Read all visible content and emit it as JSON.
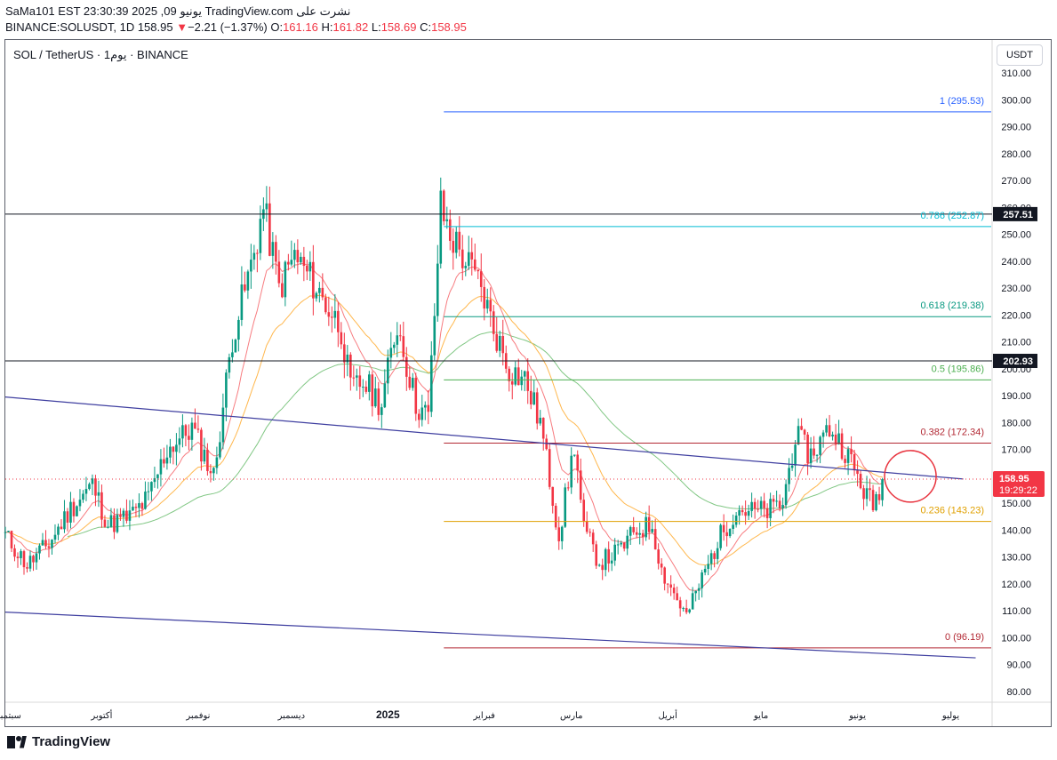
{
  "header": {
    "line1": "SaMa101 EST 23:30:39 2025 ,09 يونيو TradingView.com نشرت على",
    "symbol": "BINANCE:SOLUSDT, 1D",
    "last": "158.95",
    "arrow": "▼",
    "change": "−2.21 (−1.37%)",
    "o_label": "O:",
    "o": "161.16",
    "h_label": "H:",
    "h": "161.82",
    "l_label": "L:",
    "l": "158.69",
    "c_label": "C:",
    "c": "158.95"
  },
  "legend": "SOL / TetherUS · 1يوم · BINANCE",
  "unit_button": "USDT",
  "brand": "TradingView",
  "colors": {
    "up": "#089981",
    "down": "#f23645",
    "ema_fast": "#f77c80",
    "ema_mid": "#ffb74d",
    "ema_slow": "#81c784",
    "trend": "#3f3fa0",
    "fib_1": "#2962ff",
    "fib_786": "#00bcd4",
    "fib_618": "#089981",
    "fib_5": "#4caf50",
    "fib_382": "#b22833",
    "fib_236": "#e0a000",
    "fib_0": "#b22833",
    "circle": "#e8333e",
    "price_badge": "#f23645"
  },
  "chart_data": {
    "type": "candlestick",
    "y_axis": {
      "ticks": [
        80,
        90,
        100,
        110,
        120,
        130,
        140,
        150,
        160,
        170,
        180,
        190,
        200,
        210,
        220,
        230,
        240,
        250,
        260,
        270,
        280,
        290,
        300,
        310
      ],
      "ylim": [
        76,
        314
      ]
    },
    "x_axis": {
      "ticks": [
        "سبتمبر",
        "أكتوبر",
        "نوفمبر",
        "ديسمبر",
        "2025",
        "فبراير",
        "مارس",
        "أبريل",
        "مايو",
        "يونيو",
        "يوليو"
      ],
      "dates": [
        "2024-09-01",
        "2024-10-01",
        "2024-11-01",
        "2024-12-01",
        "2025-01-01",
        "2025-02-01",
        "2025-03-01",
        "2025-04-01",
        "2025-05-01",
        "2025-06-01",
        "2025-07-01"
      ]
    },
    "fib_levels": [
      {
        "label": "1 (295.53)",
        "value": 295.53
      },
      {
        "label": "0.786 (252.87)",
        "value": 252.87
      },
      {
        "label": "0.618 (219.38)",
        "value": 219.38
      },
      {
        "label": "0.5 (195.86)",
        "value": 195.86
      },
      {
        "label": "0.382 (172.34)",
        "value": 172.34
      },
      {
        "label": "0.236 (143.23)",
        "value": 143.23
      },
      {
        "label": "0 (96.19)",
        "value": 96.19
      }
    ],
    "fib_start": "2025-01-19",
    "horizontal_lines": [
      {
        "label": "257.51",
        "value": 257.51
      },
      {
        "label": "202.93",
        "value": 202.93
      }
    ],
    "trendlines": [
      {
        "from": [
          "2024-08-31",
          189.5
        ],
        "to": [
          "2025-07-05",
          159.0
        ]
      },
      {
        "from": [
          "2024-08-31",
          109.5
        ],
        "to": [
          "2025-07-09",
          92.5
        ]
      }
    ],
    "last_price": {
      "label": "158.95",
      "countdown": "19:29:22",
      "value": 158.95
    },
    "highlight_circle": {
      "date": "2025-06-18",
      "value": 160
    },
    "ohlc_keypoints": [
      [
        "2024-08-31",
        138
      ],
      [
        "2024-09-07",
        127
      ],
      [
        "2024-09-14",
        135
      ],
      [
        "2024-09-21",
        148
      ],
      [
        "2024-09-28",
        157
      ],
      [
        "2024-10-03",
        142
      ],
      [
        "2024-10-10",
        145
      ],
      [
        "2024-10-16",
        152
      ],
      [
        "2024-10-22",
        170
      ],
      [
        "2024-10-30",
        178
      ],
      [
        "2024-11-06",
        160
      ],
      [
        "2024-11-12",
        212
      ],
      [
        "2024-11-18",
        238
      ],
      [
        "2024-11-22",
        260
      ],
      [
        "2024-11-27",
        230
      ],
      [
        "2024-12-02",
        242
      ],
      [
        "2024-12-08",
        232
      ],
      [
        "2024-12-12",
        224
      ],
      [
        "2024-12-17",
        215
      ],
      [
        "2024-12-20",
        192
      ],
      [
        "2024-12-24",
        195
      ],
      [
        "2024-12-30",
        187
      ],
      [
        "2025-01-04",
        217
      ],
      [
        "2025-01-10",
        187
      ],
      [
        "2025-01-14",
        182
      ],
      [
        "2025-01-18",
        260
      ],
      [
        "2025-01-21",
        250
      ],
      [
        "2025-01-26",
        240
      ],
      [
        "2025-01-31",
        230
      ],
      [
        "2025-02-04",
        215
      ],
      [
        "2025-02-09",
        200
      ],
      [
        "2025-02-14",
        196
      ],
      [
        "2025-02-19",
        180
      ],
      [
        "2025-02-25",
        138
      ],
      [
        "2025-03-02",
        172
      ],
      [
        "2025-03-05",
        140
      ],
      [
        "2025-03-10",
        128
      ],
      [
        "2025-03-16",
        132
      ],
      [
        "2025-03-22",
        140
      ],
      [
        "2025-03-27",
        142
      ],
      [
        "2025-03-30",
        125
      ],
      [
        "2025-04-07",
        108
      ],
      [
        "2025-04-12",
        122
      ],
      [
        "2025-04-18",
        138
      ],
      [
        "2025-04-23",
        148
      ],
      [
        "2025-04-28",
        147
      ],
      [
        "2025-05-03",
        147
      ],
      [
        "2025-05-08",
        150
      ],
      [
        "2025-05-12",
        175
      ],
      [
        "2025-05-17",
        168
      ],
      [
        "2025-05-23",
        178
      ],
      [
        "2025-05-28",
        170
      ],
      [
        "2025-06-02",
        157
      ],
      [
        "2025-06-06",
        149
      ],
      [
        "2025-06-09",
        158.95
      ]
    ]
  }
}
